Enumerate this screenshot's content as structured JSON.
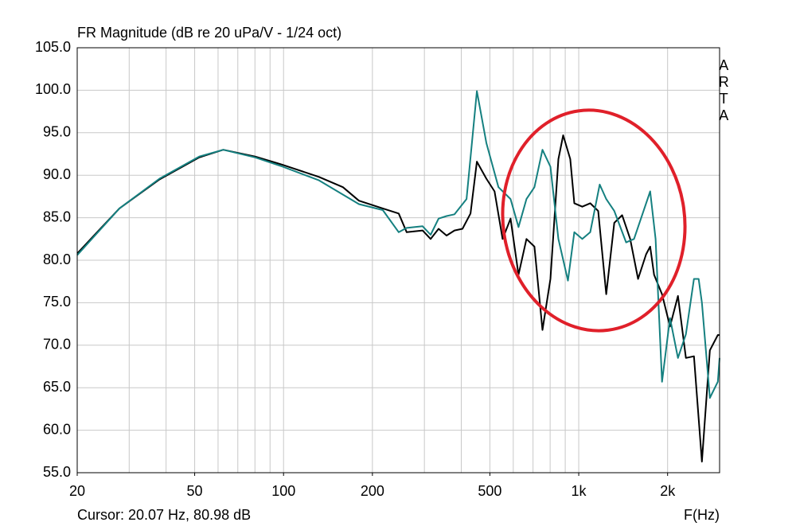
{
  "chart_data": {
    "type": "line",
    "title": "FR Magnitude (dB re 20 uPa/V - 1/24 oct)",
    "side_label": "ARTA",
    "cursor": "Cursor: 20.07 Hz, 80.98 dB",
    "x_label": "F(Hz)",
    "xscale": "log",
    "grid": true,
    "xlim": [
      20,
      3000
    ],
    "ylim": [
      55,
      105
    ],
    "xticks": [
      20,
      50,
      100,
      200,
      500,
      {
        "value": 1000,
        "label": "1k"
      },
      {
        "value": 2000,
        "label": "2k"
      }
    ],
    "yticks": [
      {
        "value": 55,
        "label": "55.0"
      },
      {
        "value": 60,
        "label": "60.0"
      },
      {
        "value": 65,
        "label": "65.0"
      },
      {
        "value": 70,
        "label": "70.0"
      },
      {
        "value": 75,
        "label": "75.0"
      },
      {
        "value": 80,
        "label": "80.0"
      },
      {
        "value": 85,
        "label": "85.0"
      },
      {
        "value": 90,
        "label": "90.0"
      },
      {
        "value": 95,
        "label": "95.0"
      },
      {
        "value": 100,
        "label": "100.0"
      },
      {
        "value": 105,
        "label": "105.0"
      }
    ],
    "series": [
      {
        "color": "#000000",
        "x": [
          20,
          27.8,
          38,
          51.8,
          62.5,
          80.1,
          97.8,
          131.8,
          158.9,
          180,
          216.9,
          245.6,
          261.3,
          295.9,
          314.9,
          335.1,
          356.6,
          379.5,
          403.9,
          429.8,
          451.8,
          486.6,
          518.5,
          552,
          587.5,
          625.2,
          665.3,
          708,
          753.4,
          801.8,
          853.2,
          885.6,
          936.2,
          966,
          1028,
          1094,
          1164,
          1239,
          1319,
          1403,
          1494,
          1589,
          1691,
          1746,
          1800,
          1915,
          2038,
          2168,
          2307,
          2456,
          2613,
          2781,
          2959,
          3000
        ],
        "values": [
          80.8,
          86.1,
          89.5,
          92.1,
          93.0,
          92.2,
          91.3,
          89.8,
          88.6,
          87.0,
          86.1,
          85.5,
          83.3,
          83.5,
          82.5,
          83.7,
          82.9,
          83.5,
          83.7,
          85.5,
          91.6,
          89.6,
          88.1,
          82.5,
          84.9,
          78.3,
          82.5,
          81.6,
          71.8,
          77.8,
          91.9,
          94.7,
          91.9,
          86.7,
          86.3,
          86.7,
          85.8,
          76.0,
          84.4,
          85.3,
          82.5,
          77.8,
          80.7,
          81.6,
          78.3,
          76.0,
          72.2,
          75.8,
          68.5,
          68.7,
          56.3,
          69.4,
          71.2,
          71.2
        ]
      },
      {
        "color": "#158080",
        "x": [
          20,
          27.8,
          38,
          51.8,
          62.5,
          80.1,
          97.8,
          131.8,
          180,
          216.9,
          245.6,
          261.3,
          295.9,
          314.9,
          335.1,
          356.6,
          379.5,
          416.7,
          451.8,
          486.6,
          534.7,
          587.5,
          625.2,
          665.3,
          708,
          753.4,
          801.8,
          853.2,
          919.5,
          966,
          1028,
          1094,
          1178,
          1239,
          1319,
          1447,
          1539,
          1589,
          1746,
          1821,
          1915,
          2038,
          2168,
          2307,
          2456,
          2548,
          2613,
          2781,
          2959,
          3000
        ],
        "values": [
          80.6,
          86.1,
          89.6,
          92.2,
          93.0,
          92.1,
          91.1,
          89.4,
          86.6,
          85.9,
          83.3,
          83.8,
          84.0,
          83.0,
          84.9,
          85.2,
          85.4,
          87.2,
          99.9,
          93.8,
          88.6,
          87.2,
          83.9,
          87.2,
          88.6,
          93.0,
          91.0,
          82.5,
          77.6,
          83.3,
          82.5,
          83.3,
          88.9,
          87.2,
          85.8,
          82.1,
          82.5,
          83.9,
          88.1,
          82.5,
          65.7,
          73.2,
          68.5,
          71.3,
          77.8,
          77.8,
          75.0,
          63.8,
          65.7,
          68.5
        ]
      }
    ]
  }
}
